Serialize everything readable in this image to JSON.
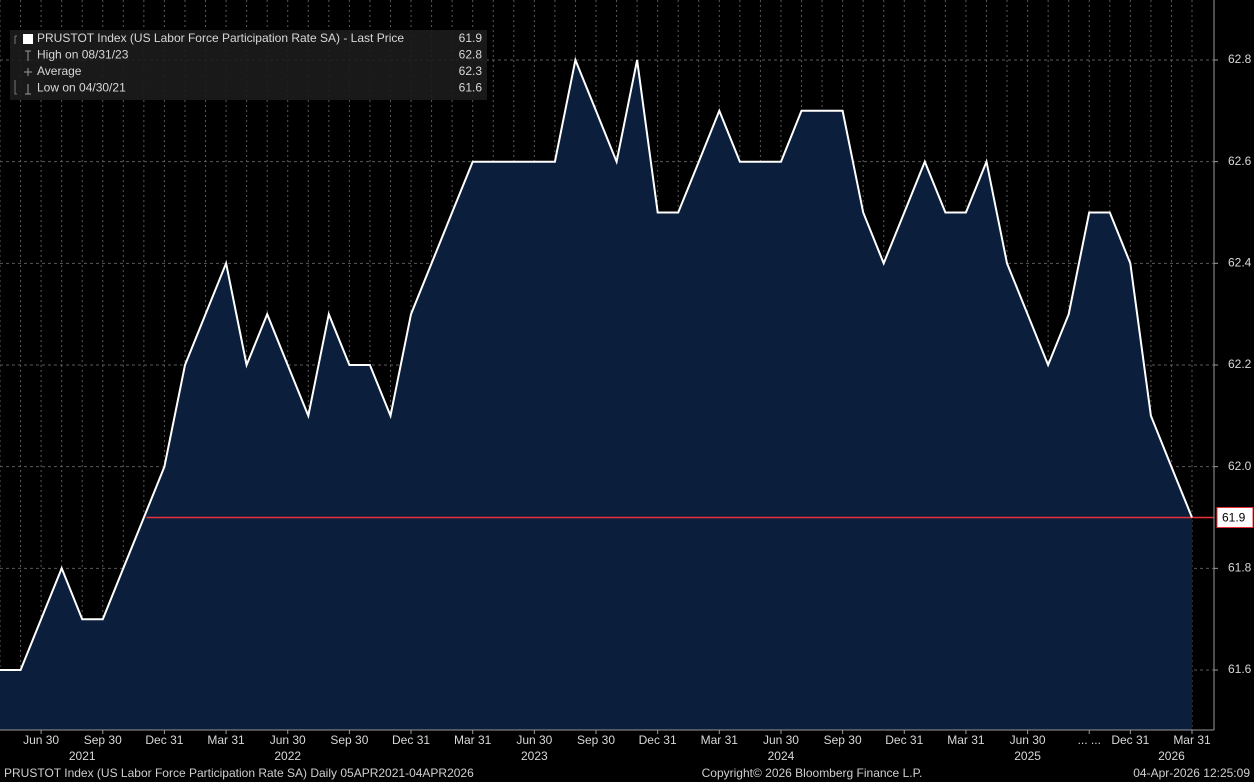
{
  "chart_data": {
    "type": "area",
    "legend": [
      {
        "label": "PRUSTOT Index (US Labor Force Participation Rate SA) - Last Price",
        "value": 61.9
      },
      {
        "label": "High on 08/31/23",
        "value": 62.8
      },
      {
        "label": "Average",
        "value": 62.3
      },
      {
        "label": "Low on 04/30/21",
        "value": 61.6
      }
    ],
    "x": [
      "2021-04-30",
      "2021-05-31",
      "2021-06-30",
      "2021-07-31",
      "2021-08-31",
      "2021-09-30",
      "2021-10-31",
      "2021-11-30",
      "2021-12-31",
      "2022-01-31",
      "2022-02-28",
      "2022-03-31",
      "2022-04-30",
      "2022-05-31",
      "2022-06-30",
      "2022-07-31",
      "2022-08-31",
      "2022-09-30",
      "2022-10-31",
      "2022-11-30",
      "2022-12-31",
      "2023-01-31",
      "2023-02-28",
      "2023-03-31",
      "2023-04-30",
      "2023-05-31",
      "2023-06-30",
      "2023-07-31",
      "2023-08-31",
      "2023-09-30",
      "2023-10-31",
      "2023-11-30",
      "2023-12-31",
      "2024-01-31",
      "2024-02-29",
      "2024-03-31",
      "2024-04-30",
      "2024-05-31",
      "2024-06-30",
      "2024-07-31",
      "2024-08-31",
      "2024-09-30",
      "2024-10-31",
      "2024-11-30",
      "2024-12-31",
      "2025-01-31",
      "2025-02-28",
      "2025-03-31",
      "2025-04-30",
      "2025-05-31",
      "2025-06-30",
      "2025-07-31",
      "2025-08-31",
      "2025-09-30",
      "2025-11-30",
      "2025-12-31",
      "2026-01-31",
      "2026-02-28",
      "2026-03-31"
    ],
    "series": [
      {
        "name": "PRUSTOT Index",
        "color": "#ffffff",
        "fill": "#0b1f3c",
        "values": [
          61.6,
          61.6,
          61.7,
          61.8,
          61.7,
          61.7,
          61.8,
          61.9,
          62.0,
          62.2,
          62.3,
          62.4,
          62.2,
          62.3,
          62.2,
          62.1,
          62.3,
          62.2,
          62.2,
          62.1,
          62.3,
          62.4,
          62.5,
          62.6,
          62.6,
          62.6,
          62.6,
          62.6,
          62.8,
          62.7,
          62.6,
          62.8,
          62.5,
          62.5,
          62.6,
          62.7,
          62.6,
          62.6,
          62.6,
          62.7,
          62.7,
          62.7,
          62.5,
          62.4,
          62.5,
          62.6,
          62.5,
          62.5,
          62.6,
          62.4,
          62.3,
          62.2,
          62.3,
          62.5,
          62.5,
          62.4,
          62.1,
          62.0,
          61.9
        ]
      }
    ],
    "ylim": [
      61.482,
      62.918
    ],
    "yticks": [
      61.6,
      61.8,
      {
        "value": 62.0,
        "label": "62.0"
      },
      62.2,
      62.4,
      62.6,
      62.8
    ],
    "xticks": [
      {
        "value": "2021-06-30",
        "label": "Jun 30"
      },
      {
        "value": "2021-09-30",
        "label": "Sep 30"
      },
      {
        "value": "2021-12-31",
        "label": "Dec 31"
      },
      {
        "value": "2022-03-31",
        "label": "Mar 31"
      },
      {
        "value": "2022-06-30",
        "label": "Jun 30"
      },
      {
        "value": "2022-09-30",
        "label": "Sep 30"
      },
      {
        "value": "2022-12-31",
        "label": "Dec 31"
      },
      {
        "value": "2023-03-31",
        "label": "Mar 31"
      },
      {
        "value": "2023-06-30",
        "label": "Jun 30"
      },
      {
        "value": "2023-09-30",
        "label": "Sep 30"
      },
      {
        "value": "2023-12-31",
        "label": "Dec 31"
      },
      {
        "value": "2024-03-31",
        "label": "Mar 31"
      },
      {
        "value": "2024-06-30",
        "label": "Jun 30"
      },
      {
        "value": "2024-09-30",
        "label": "Sep 30"
      },
      {
        "value": "2024-12-31",
        "label": "Dec 31"
      },
      {
        "value": "2025-03-31",
        "label": "Mar 31"
      },
      {
        "value": "2025-06-30",
        "label": "Jun 30"
      },
      {
        "value": "2025-09-30",
        "label": "... ..."
      },
      {
        "value": "2025-12-31",
        "label": "Dec 31"
      },
      {
        "value": "2026-03-31",
        "label": "Mar 31"
      }
    ],
    "year_labels": [
      {
        "value": "2021-08-31",
        "label": "2021"
      },
      {
        "value": "2022-06-30",
        "label": "2022"
      },
      {
        "value": "2023-06-30",
        "label": "2023"
      },
      {
        "value": "2024-06-30",
        "label": "2024"
      },
      {
        "value": "2025-06-30",
        "label": "2025"
      },
      {
        "value": "2026-02-28",
        "label": "2026"
      }
    ],
    "last_price_color": "#e8303a",
    "grid": true,
    "footer": {
      "left": "PRUSTOT Index (US Labor Force Participation Rate SA) Daily 05APR2021-04APR2026",
      "center": "Copyright© 2026 Bloomberg Finance L.P.",
      "right": "04-Apr-2026 12:25:09"
    }
  }
}
